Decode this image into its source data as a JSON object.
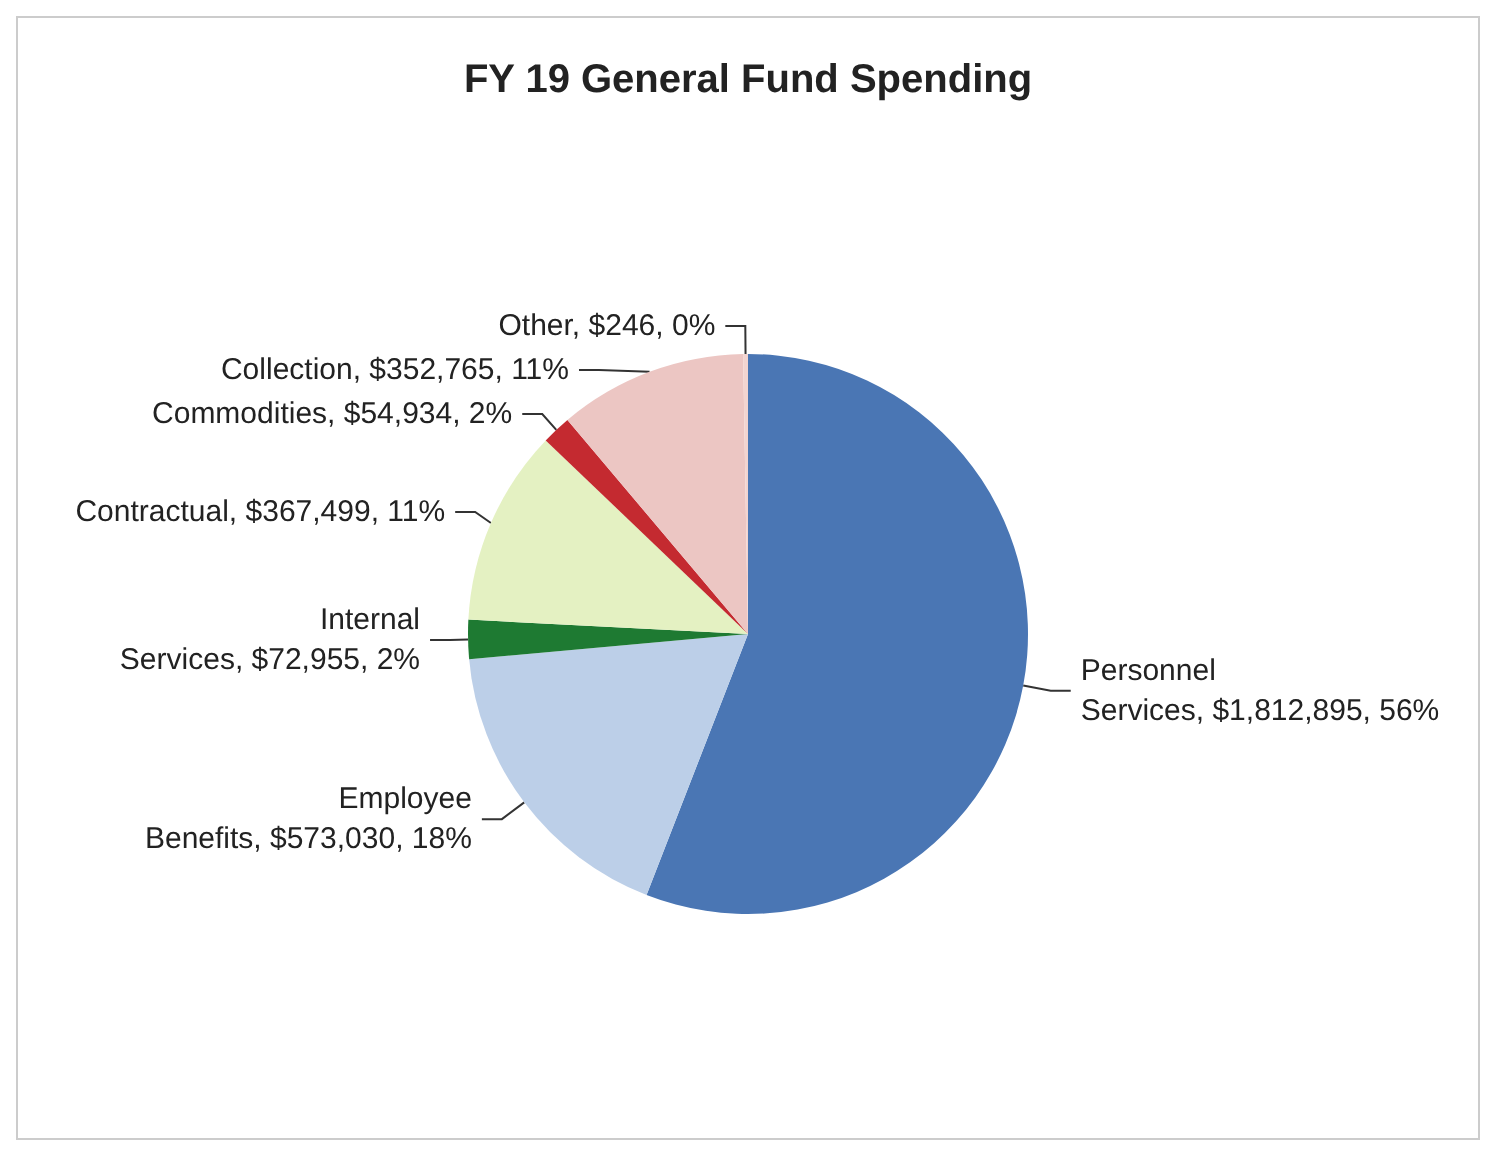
{
  "chart_data": {
    "type": "pie",
    "title": "FY 19 General Fund Spending",
    "categories": [
      "Personnel Services",
      "Employee Benefits",
      "Internal Services",
      "Contractual",
      "Commodities",
      "Collection",
      "Other"
    ],
    "values": [
      1812895,
      573030,
      72955,
      367499,
      54934,
      352765,
      246
    ],
    "value_labels": [
      "$1,812,895, 56%",
      "$573,030, 18%",
      "$72,955, 2%",
      "$367,499, 11%",
      "$54,934, 2%",
      "$352,765, 11%",
      "$246, 0%"
    ],
    "colors": [
      "#4a76b4",
      "#bccfe8",
      "#1e7a32",
      "#e4f1c2",
      "#c42a30",
      "#ecc6c3",
      "#f2d4d0"
    ],
    "legend": false
  }
}
